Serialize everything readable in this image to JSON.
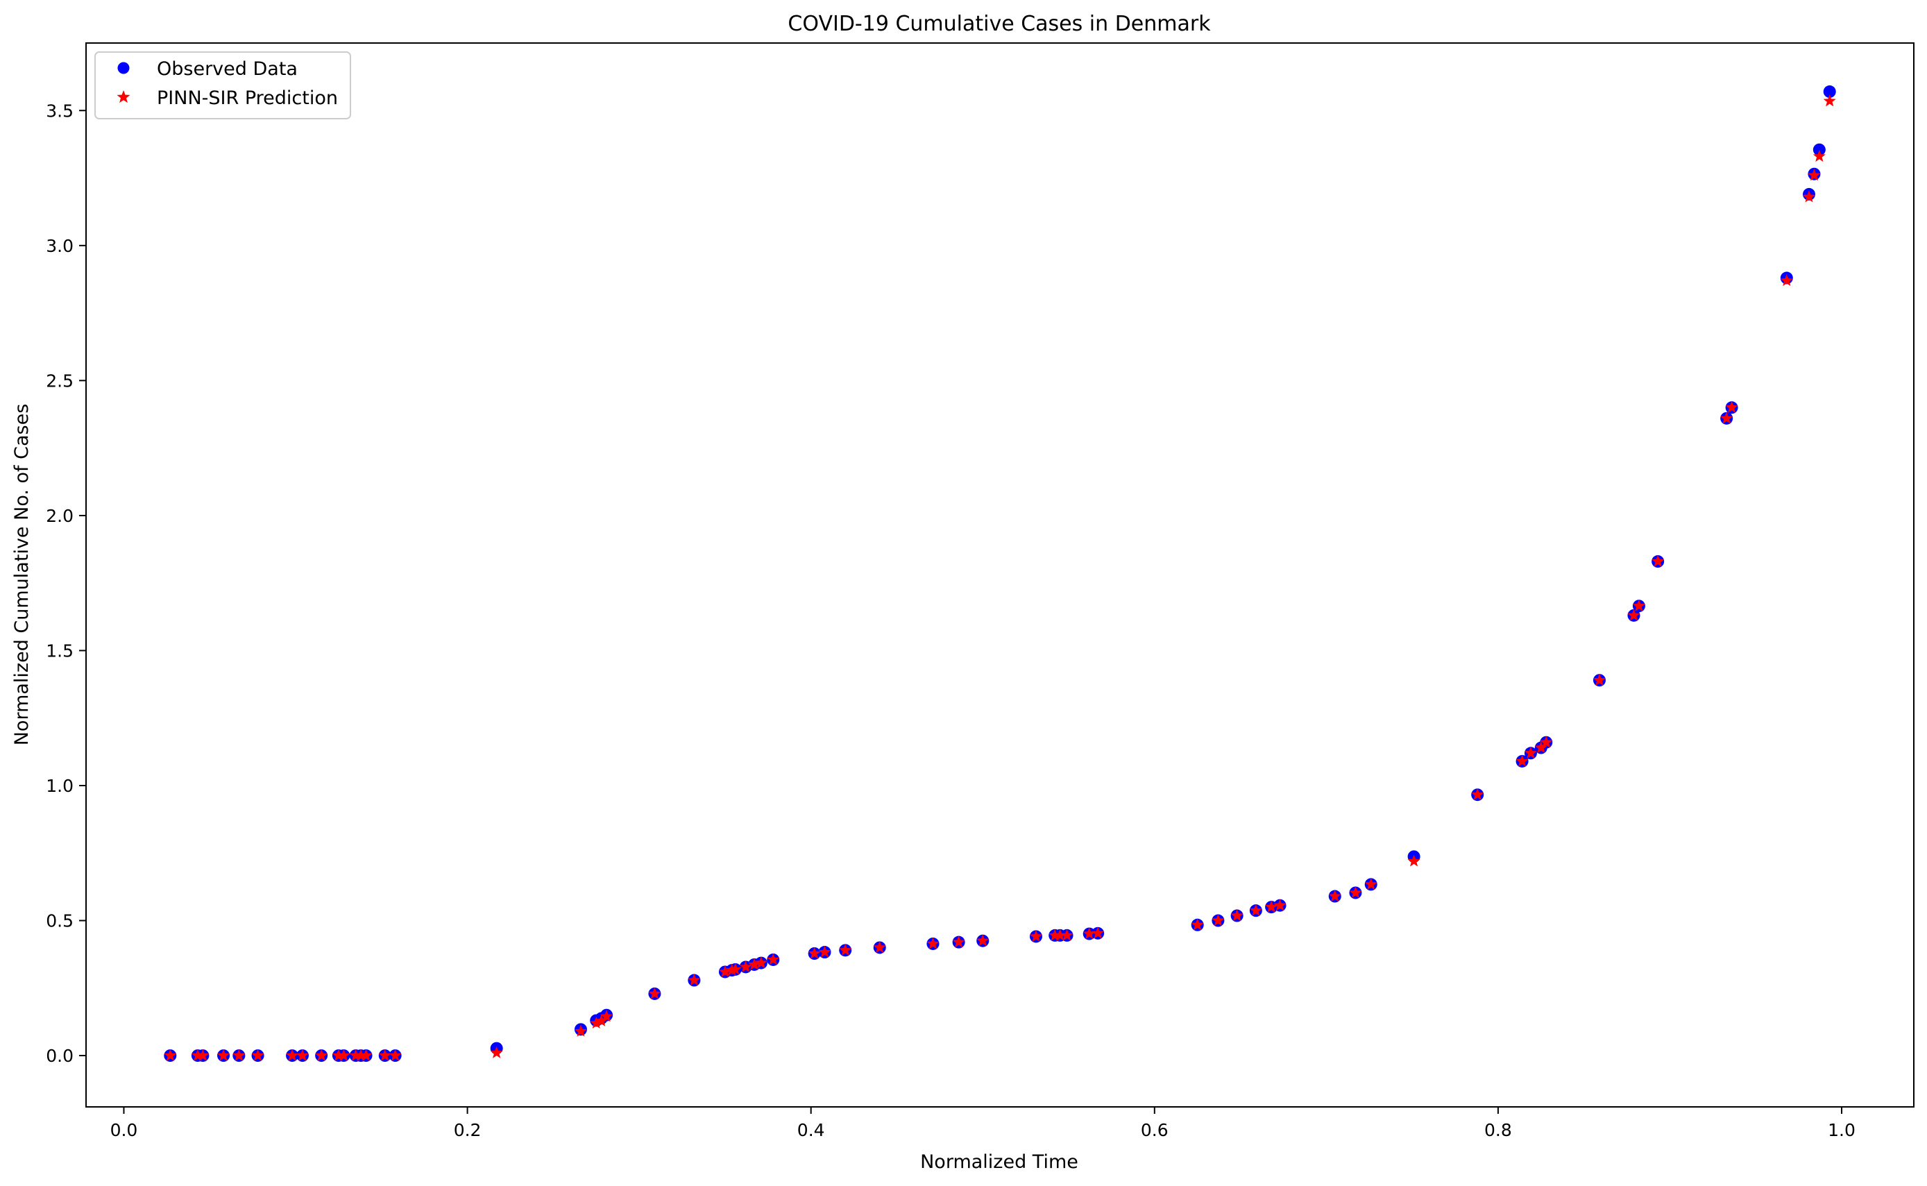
{
  "chart_data": {
    "type": "scatter",
    "title": "COVID-19 Cumulative Cases in Denmark",
    "xlabel": "Normalized Time",
    "ylabel": "Normalized Cumulative No. of Cases",
    "xlim": [
      -0.022,
      1.042
    ],
    "ylim": [
      -0.19,
      3.75
    ],
    "xticks": [
      0.0,
      0.2,
      0.4,
      0.6,
      0.8,
      1.0
    ],
    "xtick_labels": [
      "0.0",
      "0.2",
      "0.4",
      "0.6",
      "0.8",
      "1.0"
    ],
    "yticks": [
      0.0,
      0.5,
      1.0,
      1.5,
      2.0,
      2.5,
      3.0,
      3.5
    ],
    "ytick_labels": [
      "0.0",
      "0.5",
      "1.0",
      "1.5",
      "2.0",
      "2.5",
      "3.0",
      "3.5"
    ],
    "grid": false,
    "legend_position": "top-left",
    "series": [
      {
        "name": "Observed Data",
        "marker": "circle",
        "color": "#0000ff",
        "x": [
          0.027,
          0.043,
          0.046,
          0.058,
          0.067,
          0.078,
          0.098,
          0.104,
          0.115,
          0.125,
          0.128,
          0.135,
          0.138,
          0.141,
          0.152,
          0.158,
          0.217,
          0.266,
          0.275,
          0.278,
          0.281,
          0.309,
          0.332,
          0.35,
          0.354,
          0.356,
          0.362,
          0.367,
          0.371,
          0.378,
          0.402,
          0.408,
          0.42,
          0.44,
          0.471,
          0.486,
          0.5,
          0.531,
          0.542,
          0.545,
          0.549,
          0.562,
          0.567,
          0.625,
          0.637,
          0.648,
          0.659,
          0.668,
          0.673,
          0.705,
          0.717,
          0.726,
          0.751,
          0.788,
          0.814,
          0.819,
          0.825,
          0.828,
          0.859,
          0.879,
          0.882,
          0.893,
          0.933,
          0.936,
          0.968,
          0.981,
          0.984,
          0.987,
          0.993
        ],
        "y": [
          0.0,
          0.0,
          0.0,
          0.0,
          0.0,
          0.0,
          0.0,
          0.0,
          0.0,
          0.0,
          0.0,
          0.0,
          0.0,
          0.0,
          0.0,
          0.0,
          0.027,
          0.097,
          0.13,
          0.138,
          0.15,
          0.229,
          0.279,
          0.31,
          0.316,
          0.319,
          0.328,
          0.337,
          0.343,
          0.355,
          0.378,
          0.383,
          0.39,
          0.4,
          0.414,
          0.42,
          0.425,
          0.441,
          0.445,
          0.445,
          0.445,
          0.451,
          0.453,
          0.484,
          0.5,
          0.518,
          0.537,
          0.55,
          0.556,
          0.59,
          0.603,
          0.634,
          0.737,
          0.966,
          1.09,
          1.12,
          1.14,
          1.16,
          1.39,
          1.63,
          1.665,
          1.83,
          2.36,
          2.4,
          2.88,
          3.19,
          3.265,
          3.355,
          3.57
        ]
      },
      {
        "name": "PINN-SIR Prediction",
        "marker": "star",
        "color": "#ff0000",
        "x": [
          0.027,
          0.043,
          0.046,
          0.058,
          0.067,
          0.078,
          0.098,
          0.104,
          0.115,
          0.125,
          0.128,
          0.135,
          0.138,
          0.141,
          0.152,
          0.158,
          0.217,
          0.266,
          0.275,
          0.278,
          0.281,
          0.309,
          0.332,
          0.35,
          0.354,
          0.356,
          0.362,
          0.367,
          0.371,
          0.378,
          0.402,
          0.408,
          0.42,
          0.44,
          0.471,
          0.486,
          0.5,
          0.531,
          0.542,
          0.545,
          0.549,
          0.562,
          0.567,
          0.625,
          0.637,
          0.648,
          0.659,
          0.668,
          0.673,
          0.705,
          0.717,
          0.726,
          0.751,
          0.788,
          0.814,
          0.819,
          0.825,
          0.828,
          0.859,
          0.879,
          0.882,
          0.893,
          0.933,
          0.936,
          0.968,
          0.981,
          0.984,
          0.987,
          0.993
        ],
        "y": [
          0.0,
          0.0,
          0.0,
          0.0,
          0.0,
          0.0,
          0.0,
          0.0,
          0.0,
          0.0,
          0.0,
          0.0,
          0.0,
          0.0,
          0.0,
          0.0,
          0.01,
          0.09,
          0.12,
          0.128,
          0.145,
          0.229,
          0.279,
          0.31,
          0.316,
          0.319,
          0.328,
          0.337,
          0.343,
          0.355,
          0.378,
          0.383,
          0.39,
          0.4,
          0.414,
          0.42,
          0.425,
          0.441,
          0.445,
          0.445,
          0.445,
          0.451,
          0.453,
          0.484,
          0.5,
          0.518,
          0.537,
          0.55,
          0.556,
          0.59,
          0.603,
          0.634,
          0.72,
          0.966,
          1.09,
          1.12,
          1.14,
          1.16,
          1.39,
          1.63,
          1.665,
          1.83,
          2.36,
          2.4,
          2.87,
          3.18,
          3.26,
          3.33,
          3.535
        ]
      }
    ]
  }
}
